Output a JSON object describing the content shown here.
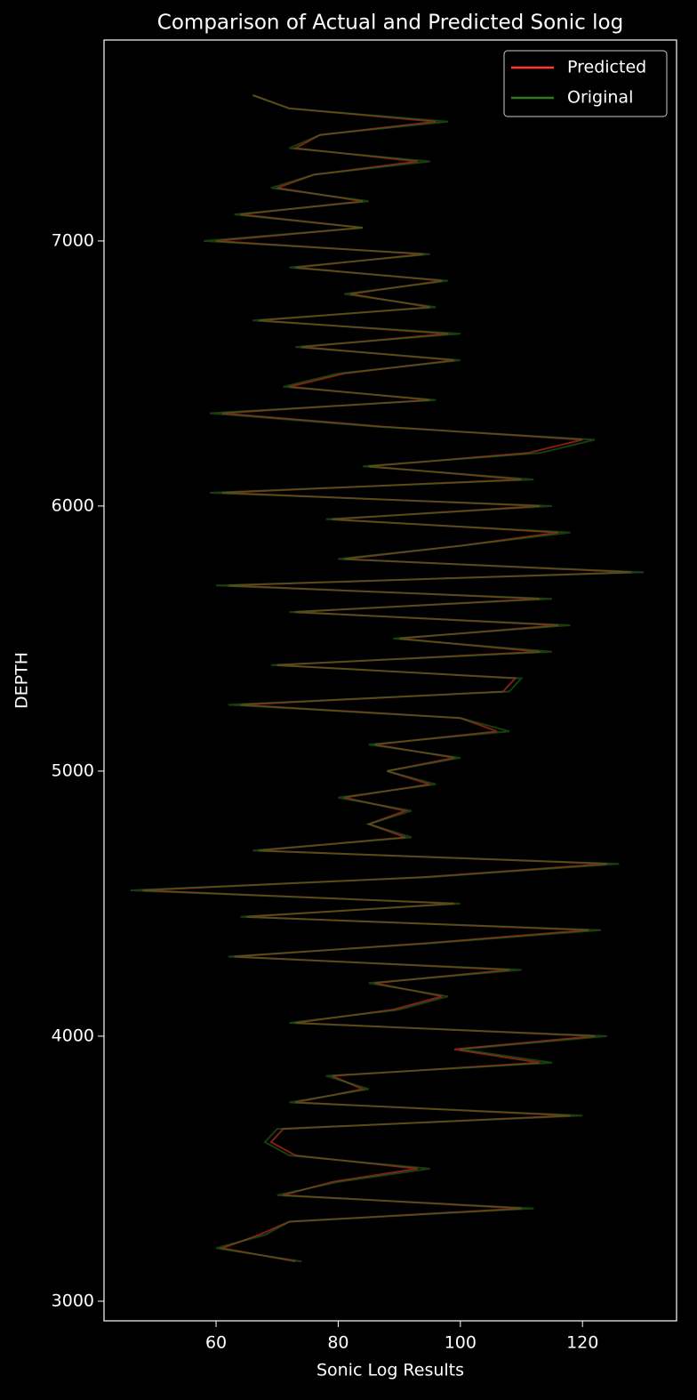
{
  "chart_data": {
    "type": "line",
    "orientation": "vertical-depth",
    "title": "Comparison of Actual and Predicted Sonic log",
    "xlabel": "Sonic Log Results",
    "ylabel": "DEPTH",
    "y": [
      3150,
      3200,
      3250,
      3300,
      3350,
      3400,
      3450,
      3500,
      3550,
      3600,
      3650,
      3700,
      3750,
      3800,
      3850,
      3900,
      3950,
      4000,
      4050,
      4100,
      4150,
      4200,
      4250,
      4300,
      4350,
      4400,
      4450,
      4500,
      4550,
      4600,
      4650,
      4700,
      4750,
      4800,
      4850,
      4900,
      4950,
      5000,
      5050,
      5100,
      5150,
      5200,
      5250,
      5300,
      5350,
      5400,
      5450,
      5500,
      5550,
      5600,
      5650,
      5700,
      5750,
      5800,
      5850,
      5900,
      5950,
      6000,
      6050,
      6100,
      6150,
      6200,
      6250,
      6300,
      6350,
      6400,
      6450,
      6500,
      6550,
      6600,
      6650,
      6700,
      6750,
      6800,
      6850,
      6900,
      6950,
      7000,
      7050,
      7100,
      7150,
      7200,
      7250,
      7300,
      7350,
      7400,
      7450,
      7500,
      7550
    ],
    "series": [
      {
        "name": "Predicted",
        "color": "#ff3b30",
        "values": [
          73,
          61,
          67,
          72,
          110,
          71,
          79,
          93,
          73,
          69,
          71,
          118,
          73,
          84,
          79,
          113,
          99,
          122,
          73,
          89,
          97,
          86,
          108,
          63,
          94,
          121,
          65,
          99,
          48,
          94,
          124,
          67,
          91,
          85,
          91,
          81,
          95,
          88,
          99,
          86,
          106,
          100,
          64,
          107,
          109,
          70,
          113,
          90,
          116,
          73,
          113,
          62,
          128,
          81,
          100,
          116,
          79,
          113,
          61,
          110,
          85,
          111,
          120,
          87,
          61,
          95,
          72,
          81,
          99,
          74,
          98,
          67,
          95,
          82,
          97,
          73,
          94,
          60,
          84,
          64,
          84,
          70,
          76,
          93,
          73,
          77,
          96,
          72,
          66
        ]
      },
      {
        "name": "Original",
        "color": "#2f7a1e",
        "values": [
          74,
          60,
          68,
          72,
          112,
          70,
          80,
          95,
          72,
          68,
          70,
          120,
          72,
          85,
          78,
          115,
          100,
          124,
          72,
          90,
          98,
          85,
          110,
          62,
          95,
          123,
          64,
          100,
          46,
          95,
          126,
          66,
          92,
          85,
          92,
          80,
          96,
          88,
          100,
          85,
          108,
          100,
          62,
          108,
          110,
          69,
          115,
          89,
          118,
          72,
          115,
          60,
          130,
          80,
          100,
          118,
          78,
          115,
          59,
          112,
          84,
          113,
          122,
          86,
          59,
          96,
          71,
          80,
          100,
          73,
          100,
          66,
          96,
          81,
          98,
          72,
          95,
          58,
          84,
          63,
          85,
          69,
          76,
          95,
          72,
          77,
          98,
          72,
          66
        ]
      }
    ],
    "xlim": [
      41.65,
      135.4
    ],
    "ylim": [
      2926,
      7758
    ],
    "xticks": [
      60,
      80,
      100,
      120
    ],
    "yticks": [
      3000,
      4000,
      5000,
      6000,
      7000
    ],
    "legend": "upper right"
  }
}
